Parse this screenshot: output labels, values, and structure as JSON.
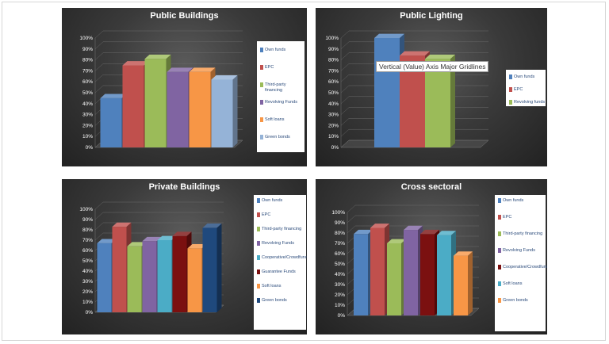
{
  "tooltip_text": "Vertical (Value) Axis Major Gridlines",
  "chart_data": [
    {
      "type": "bar",
      "title": "Public Buildings",
      "ylim": [
        0,
        100
      ],
      "yticks": [
        "0%",
        "10%",
        "20%",
        "30%",
        "40%",
        "50%",
        "60%",
        "70%",
        "80%",
        "90%",
        "100%"
      ],
      "legend_position": "right",
      "series": [
        {
          "name": "Own funds",
          "value": 45,
          "color": "#4f81bd"
        },
        {
          "name": "EPC",
          "value": 75,
          "color": "#c0504d"
        },
        {
          "name": "Third-party financing",
          "value": 81,
          "color": "#9bbb59"
        },
        {
          "name": "Revolving Funds",
          "value": 69,
          "color": "#8064a2"
        },
        {
          "name": "Soft loans",
          "value": 69,
          "color": "#f79646"
        },
        {
          "name": "Green bonds",
          "value": 62,
          "color": "#95b3d7"
        }
      ]
    },
    {
      "type": "bar",
      "title": "Public Lighting",
      "ylim": [
        0,
        100
      ],
      "yticks": [
        "0%",
        "10%",
        "20%",
        "30%",
        "40%",
        "50%",
        "60%",
        "70%",
        "80%",
        "90%",
        "100%"
      ],
      "legend_position": "right",
      "series": [
        {
          "name": "Own funds",
          "value": 100,
          "color": "#4f81bd"
        },
        {
          "name": "EPC",
          "value": 84,
          "color": "#c0504d"
        },
        {
          "name": "Revolving funds",
          "value": 81,
          "color": "#9bbb59"
        }
      ]
    },
    {
      "type": "bar",
      "title": "Private Buildings",
      "ylim": [
        0,
        100
      ],
      "yticks": [
        "0%",
        "10%",
        "20%",
        "30%",
        "40%",
        "50%",
        "60%",
        "70%",
        "80%",
        "90%",
        "100%"
      ],
      "legend_position": "right",
      "series": [
        {
          "name": "Own funds",
          "value": 67,
          "color": "#4f81bd"
        },
        {
          "name": "EPC",
          "value": 83,
          "color": "#c0504d"
        },
        {
          "name": "Third-party financing",
          "value": 64,
          "color": "#9bbb59"
        },
        {
          "name": "Revolving Funds",
          "value": 69,
          "color": "#8064a2"
        },
        {
          "name": "Cooperative/Crowdfunding",
          "value": 70,
          "color": "#4bacc6"
        },
        {
          "name": "Guarantee Funds",
          "value": 74,
          "color": "#7b1010"
        },
        {
          "name": "Soft loans",
          "value": 62,
          "color": "#f79646"
        },
        {
          "name": "Green bonds",
          "value": 82,
          "color": "#1f497d"
        }
      ]
    },
    {
      "type": "bar",
      "title": "Cross sectoral",
      "ylim": [
        0,
        100
      ],
      "yticks": [
        "0%",
        "10%",
        "20%",
        "30%",
        "40%",
        "50%",
        "60%",
        "70%",
        "80%",
        "90%",
        "100%"
      ],
      "legend_position": "right",
      "series": [
        {
          "name": "Own funds",
          "value": 79,
          "color": "#4f81bd"
        },
        {
          "name": "EPC",
          "value": 85,
          "color": "#c0504d"
        },
        {
          "name": "Third-party financing",
          "value": 70,
          "color": "#9bbb59"
        },
        {
          "name": "Revolving Funds",
          "value": 83,
          "color": "#8064a2"
        },
        {
          "name": "Cooperative/Crowdfunding",
          "value": 79,
          "color": "#7b1010"
        },
        {
          "name": "Soft loans",
          "value": 78,
          "color": "#4bacc6"
        },
        {
          "name": "Green bonds",
          "value": 58,
          "color": "#f79646"
        }
      ]
    }
  ]
}
